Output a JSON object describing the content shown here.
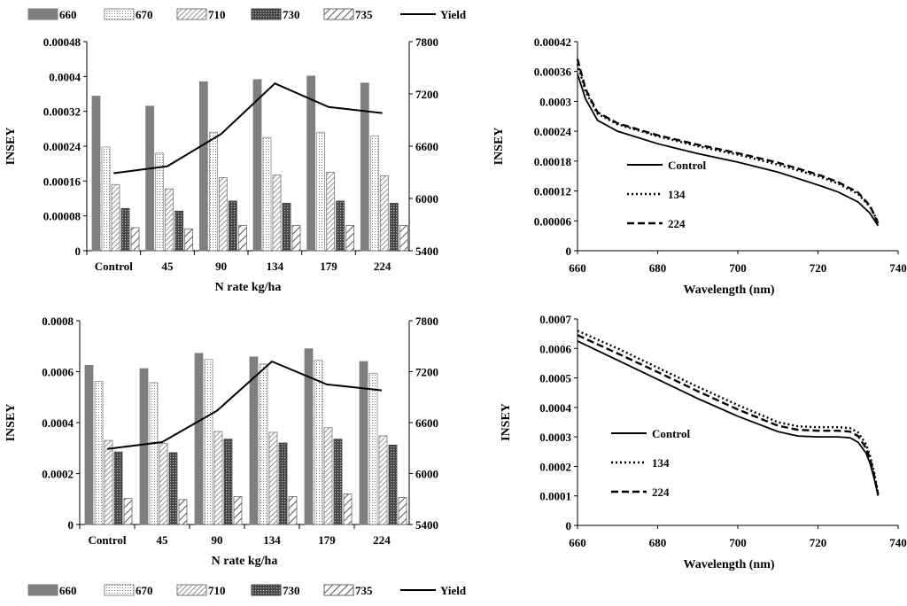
{
  "chart_data": [
    {
      "id": "top-left",
      "type": "bar",
      "categories": [
        "Control",
        "45",
        "90",
        "134",
        "179",
        "224"
      ],
      "series": [
        {
          "name": "660",
          "values": [
            0.000355,
            0.000332,
            0.000388,
            0.000393,
            0.000401,
            0.000385
          ]
        },
        {
          "name": "670",
          "values": [
            0.000238,
            0.000224,
            0.000272,
            0.00026,
            0.000272,
            0.000263
          ]
        },
        {
          "name": "710",
          "values": [
            0.000152,
            0.000142,
            0.000168,
            0.000174,
            0.00018,
            0.000172
          ]
        },
        {
          "name": "730",
          "values": [
            9.7e-05,
            9.1e-05,
            0.000114,
            0.000109,
            0.000114,
            0.000109
          ]
        },
        {
          "name": "735",
          "values": [
            5.3e-05,
            5e-05,
            5.8e-05,
            5.8e-05,
            5.8e-05,
            5.8e-05
          ]
        }
      ],
      "line_series": {
        "name": "Yield",
        "values": [
          6290,
          6370,
          6740,
          7320,
          7050,
          6980
        ]
      },
      "xlabel": "N rate kg/ha",
      "ylabel": "INSEY",
      "ylim": [
        0,
        0.00048
      ],
      "yticks": [
        "0",
        "0.00008",
        "0.00016",
        "0.00024",
        "0.00032",
        "0.0004",
        "0.00048"
      ],
      "y2lim": [
        5400,
        7800
      ],
      "y2ticks": [
        "5400",
        "6000",
        "6600",
        "7200",
        "7800"
      ]
    },
    {
      "id": "top-right",
      "type": "line",
      "x": [
        660,
        662,
        665,
        670,
        680,
        690,
        700,
        710,
        720,
        725,
        730,
        733,
        735
      ],
      "series": [
        {
          "name": "Control",
          "style": "solid",
          "values": [
            0.000355,
            0.000305,
            0.000262,
            0.00024,
            0.000215,
            0.000195,
            0.000178,
            0.000158,
            0.000132,
            0.000118,
            9.8e-05,
            7.5e-05,
            5e-05
          ]
        },
        {
          "name": "134",
          "style": "dotted",
          "values": [
            0.000375,
            0.00032,
            0.000275,
            0.000254,
            0.00023,
            0.00021,
            0.000193,
            0.000173,
            0.00015,
            0.000135,
            0.000114,
            8.8e-05,
            5.8e-05
          ]
        },
        {
          "name": "224",
          "style": "dashed",
          "values": [
            0.000385,
            0.000325,
            0.000278,
            0.000256,
            0.000232,
            0.000213,
            0.000196,
            0.000177,
            0.000153,
            0.000138,
            0.000117,
            9e-05,
            5.5e-05
          ]
        }
      ],
      "xlabel": "Wavelength (nm)",
      "ylabel": "INSEY",
      "xlim": [
        660,
        740
      ],
      "xticks": [
        "660",
        "680",
        "700",
        "720",
        "740"
      ],
      "ylim": [
        0,
        0.00042
      ],
      "yticks": [
        "0",
        "0.00006",
        "0.00012",
        "0.00018",
        "0.00024",
        "0.0003",
        "0.00036",
        "0.00042"
      ]
    },
    {
      "id": "bottom-left",
      "type": "bar",
      "categories": [
        "Control",
        "45",
        "90",
        "134",
        "179",
        "224"
      ],
      "series": [
        {
          "name": "660",
          "values": [
            0.000625,
            0.000612,
            0.000672,
            0.000658,
            0.00069,
            0.00064
          ]
        },
        {
          "name": "670",
          "values": [
            0.000562,
            0.000557,
            0.000648,
            0.00063,
            0.000645,
            0.000593
          ]
        },
        {
          "name": "710",
          "values": [
            0.00033,
            0.000318,
            0.000365,
            0.000362,
            0.00038,
            0.000348
          ]
        },
        {
          "name": "730",
          "values": [
            0.000285,
            0.000282,
            0.000335,
            0.00032,
            0.000335,
            0.000312
          ]
        },
        {
          "name": "735",
          "values": [
            0.000102,
            9.8e-05,
            0.00011,
            0.00011,
            0.00012,
            0.000106
          ]
        }
      ],
      "line_series": {
        "name": "Yield",
        "values": [
          6290,
          6370,
          6740,
          7320,
          7050,
          6980
        ]
      },
      "xlabel": "N rate kg/ha",
      "ylabel": "INSEY",
      "ylim": [
        0,
        0.0008
      ],
      "yticks": [
        "0",
        "0.0002",
        "0.0004",
        "0.0006",
        "0.0008"
      ],
      "y2lim": [
        5400,
        7800
      ],
      "y2ticks": [
        "5400",
        "6000",
        "6600",
        "7200",
        "7800"
      ]
    },
    {
      "id": "bottom-right",
      "type": "line",
      "x": [
        660,
        670,
        680,
        690,
        700,
        710,
        715,
        720,
        725,
        728,
        730,
        732,
        733,
        734,
        735
      ],
      "series": [
        {
          "name": "Control",
          "style": "solid",
          "values": [
            0.000625,
            0.00056,
            0.000495,
            0.00043,
            0.00037,
            0.000318,
            0.000303,
            0.0003,
            0.0003,
            0.000297,
            0.000282,
            0.000245,
            0.00021,
            0.00016,
            0.0001
          ]
        },
        {
          "name": "134",
          "style": "dotted",
          "values": [
            0.00066,
            0.0006,
            0.000535,
            0.00047,
            0.000408,
            0.00035,
            0.000336,
            0.000333,
            0.000333,
            0.00033,
            0.000315,
            0.000275,
            0.000235,
            0.00018,
            0.00011
          ]
        },
        {
          "name": "224",
          "style": "dashed",
          "values": [
            0.000645,
            0.000583,
            0.00052,
            0.000455,
            0.000393,
            0.000338,
            0.000324,
            0.000321,
            0.000321,
            0.000318,
            0.000303,
            0.000262,
            0.000225,
            0.00017,
            0.000105
          ]
        }
      ],
      "xlabel": "Wavelength (nm)",
      "ylabel": "INSEY",
      "xlim": [
        660,
        740
      ],
      "xticks": [
        "660",
        "680",
        "700",
        "720",
        "740"
      ],
      "ylim": [
        0,
        0.0007
      ],
      "yticks": [
        "0",
        "0.0001",
        "0.0002",
        "0.0003",
        "0.0004",
        "0.0005",
        "0.0006",
        "0.0007"
      ]
    }
  ],
  "legend_top": [
    "660",
    "670",
    "710",
    "730",
    "735",
    "Yield"
  ],
  "legend_bottom": [
    "660",
    "670",
    "710",
    "730",
    "735",
    "Yield"
  ]
}
